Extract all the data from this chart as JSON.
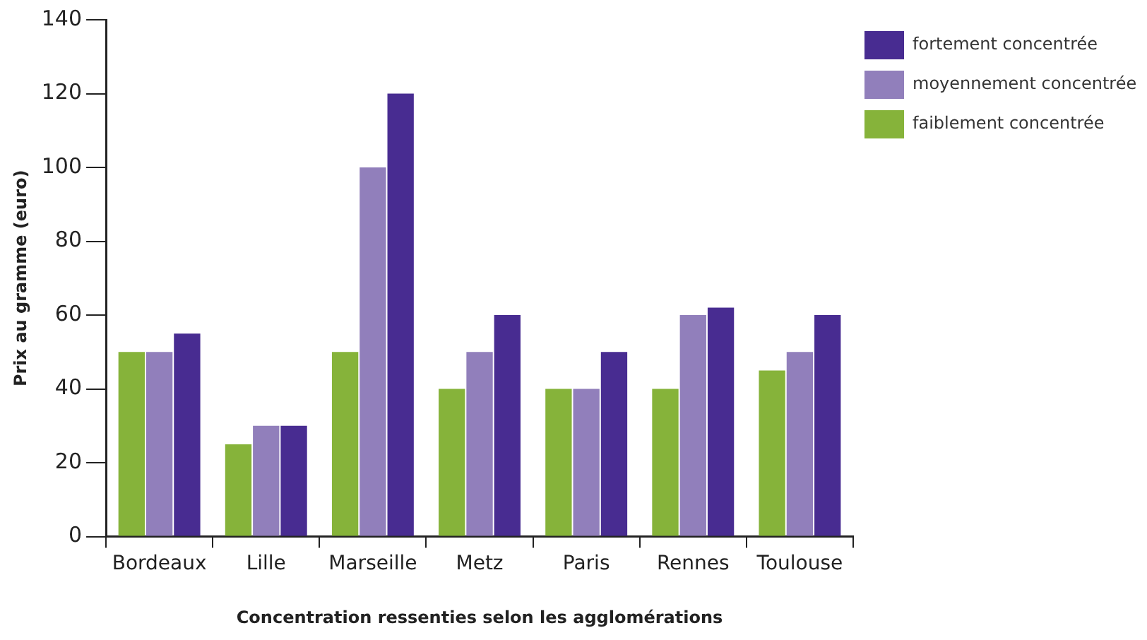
{
  "chart_data": {
    "type": "bar",
    "xlabel": "Concentration ressenties selon les agglomérations",
    "ylabel": "Prix au gramme (euro)",
    "categories": [
      "Bordeaux",
      "Lille",
      "Marseille",
      "Metz",
      "Paris",
      "Rennes",
      "Toulouse"
    ],
    "series": [
      {
        "name": "faiblement concentrée",
        "color": "#86b33a",
        "values": [
          50,
          25,
          50,
          40,
          40,
          40,
          45
        ]
      },
      {
        "name": "moyennement concentrée",
        "color": "#917fbb",
        "values": [
          50,
          30,
          100,
          50,
          40,
          60,
          50
        ]
      },
      {
        "name": "fortement concentrée",
        "color": "#482c91",
        "values": [
          55,
          30,
          120,
          60,
          50,
          62,
          60
        ]
      }
    ],
    "ylim": [
      0,
      140
    ],
    "yticks": [
      0,
      20,
      40,
      60,
      80,
      100,
      120,
      140
    ],
    "grid": false,
    "legend": "top right"
  }
}
